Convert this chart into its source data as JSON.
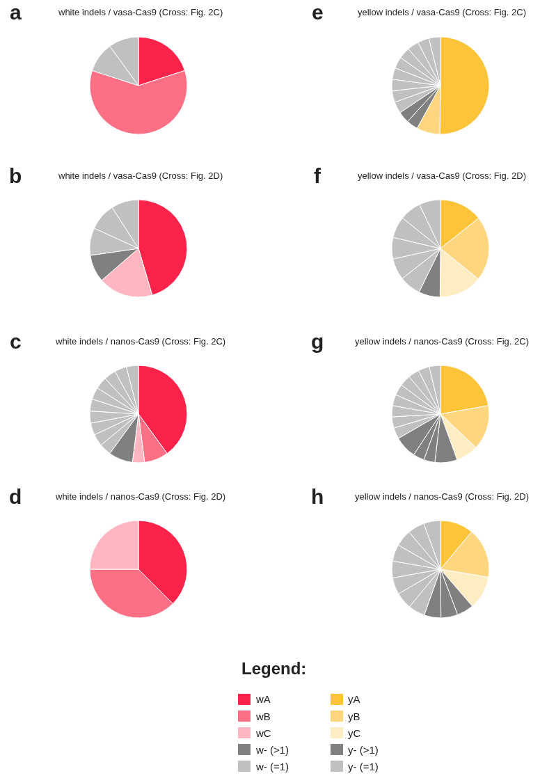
{
  "chart_data": [
    {
      "type": "pie",
      "title": "white indels / vasa-Cas9 (Cross: Fig. 2C)",
      "annotations": [
        "a"
      ],
      "categories": [
        null,
        null,
        null,
        null
      ],
      "values": [
        20,
        60,
        10,
        10
      ],
      "colors": [
        "#fb2349",
        "#fd6f85",
        "#c0c0c0",
        "#c0c0c0"
      ]
    },
    {
      "type": "pie",
      "title": "white indels / vasa-Cas9 (Cross: Fig. 2D)",
      "annotations": [
        "b"
      ],
      "categories": [
        null,
        null,
        null,
        null,
        null,
        null
      ],
      "values": [
        45.5,
        18.2,
        9.1,
        9.1,
        9.1,
        9.1
      ],
      "colors": [
        "#fb2349",
        "#ffb6c1",
        "#808080",
        "#c0c0c0",
        "#c0c0c0",
        "#c0c0c0"
      ]
    },
    {
      "type": "pie",
      "title": "white indels / nanos-Cas9 (Cross: Fig. 2C)",
      "annotations": [
        "c"
      ],
      "categories": [
        null,
        null,
        null,
        null,
        null,
        null,
        null,
        null,
        null,
        null,
        null,
        null,
        null,
        null
      ],
      "values": [
        40,
        8,
        4,
        8,
        4,
        4,
        4,
        4,
        4,
        4,
        4,
        4,
        4,
        4
      ],
      "colors": [
        "#fb2349",
        "#fd6f85",
        "#ffb6c1",
        "#808080",
        "#c0c0c0",
        "#c0c0c0",
        "#c0c0c0",
        "#c0c0c0",
        "#c0c0c0",
        "#c0c0c0",
        "#c0c0c0",
        "#c0c0c0",
        "#c0c0c0",
        "#c0c0c0"
      ]
    },
    {
      "type": "pie",
      "title": "white indels / nanos-Cas9 (Cross: Fig. 2D)",
      "annotations": [
        "d"
      ],
      "categories": [
        null,
        null,
        null
      ],
      "values": [
        37.5,
        37.5,
        25
      ],
      "colors": [
        "#fb2349",
        "#fd6f85",
        "#ffb6c1"
      ]
    },
    {
      "type": "pie",
      "title": "yellow indels / vasa-Cas9 (Cross: Fig. 2C)",
      "annotations": [
        "e"
      ],
      "categories": [
        null,
        null,
        null,
        null,
        null,
        null,
        null,
        null,
        null,
        null,
        null,
        null,
        null
      ],
      "values": [
        50,
        7.7,
        3.8,
        3.8,
        3.8,
        3.8,
        3.8,
        3.8,
        3.8,
        3.8,
        3.8,
        3.8,
        3.8
      ],
      "colors": [
        "#fdc43a",
        "#fdd67f",
        "#808080",
        "#808080",
        "#c0c0c0",
        "#c0c0c0",
        "#c0c0c0",
        "#c0c0c0",
        "#c0c0c0",
        "#c0c0c0",
        "#c0c0c0",
        "#c0c0c0",
        "#c0c0c0"
      ]
    },
    {
      "type": "pie",
      "title": "yellow indels / vasa-Cas9 (Cross: Fig. 2D)",
      "annotations": [
        "f"
      ],
      "categories": [
        null,
        null,
        null,
        null,
        null,
        null,
        null,
        null,
        null,
        null
      ],
      "values": [
        14.3,
        21.4,
        14.3,
        7.1,
        7.1,
        7.1,
        7.1,
        7.1,
        7.1,
        7.1
      ],
      "colors": [
        "#fdc43a",
        "#fdd67f",
        "#feecc2",
        "#808080",
        "#c0c0c0",
        "#c0c0c0",
        "#c0c0c0",
        "#c0c0c0",
        "#c0c0c0",
        "#c0c0c0"
      ]
    },
    {
      "type": "pie",
      "title": "yellow indels / nanos-Cas9 (Cross: Fig. 2C)",
      "annotations": [
        "g"
      ],
      "categories": [
        null,
        null,
        null,
        null,
        null,
        null,
        null,
        null,
        null,
        null,
        null,
        null,
        null,
        null,
        null,
        null
      ],
      "values": [
        22.2,
        14.8,
        7.4,
        7.4,
        3.7,
        3.7,
        7.4,
        3.7,
        3.7,
        3.7,
        3.7,
        3.7,
        3.7,
        3.7,
        3.7,
        3.7
      ],
      "colors": [
        "#fdc43a",
        "#fdd67f",
        "#feecc2",
        "#808080",
        "#808080",
        "#808080",
        "#808080",
        "#c0c0c0",
        "#c0c0c0",
        "#c0c0c0",
        "#c0c0c0",
        "#c0c0c0",
        "#c0c0c0",
        "#c0c0c0",
        "#c0c0c0",
        "#c0c0c0"
      ]
    },
    {
      "type": "pie",
      "title": "yellow indels / nanos-Cas9 (Cross: Fig. 2D)",
      "annotations": [
        "h"
      ],
      "categories": [
        null,
        null,
        null,
        null,
        null,
        null,
        null,
        null,
        null,
        null,
        null,
        null,
        null,
        null
      ],
      "values": [
        11.1,
        16.7,
        11.1,
        5.6,
        5.6,
        5.6,
        5.6,
        5.6,
        5.6,
        5.6,
        5.6,
        5.6,
        5.6,
        5.6
      ],
      "colors": [
        "#fdc43a",
        "#fdd67f",
        "#feecc2",
        "#808080",
        "#808080",
        "#808080",
        "#c0c0c0",
        "#c0c0c0",
        "#c0c0c0",
        "#c0c0c0",
        "#c0c0c0",
        "#c0c0c0",
        "#c0c0c0",
        "#c0c0c0"
      ]
    },
    {
      "type": "other",
      "title": "Legend:",
      "categories": [
        "wA",
        "wB",
        "wC",
        "w- (>1)",
        "w- (=1)",
        "yA",
        "yB",
        "yC",
        "y- (>1)",
        "y- (=1)"
      ],
      "colors": [
        "#fb2349",
        "#fd6f85",
        "#ffb6c1",
        "#808080",
        "#c0c0c0",
        "#fdc43a",
        "#fdd67f",
        "#feecc2",
        "#808080",
        "#c0c0c0"
      ]
    }
  ]
}
